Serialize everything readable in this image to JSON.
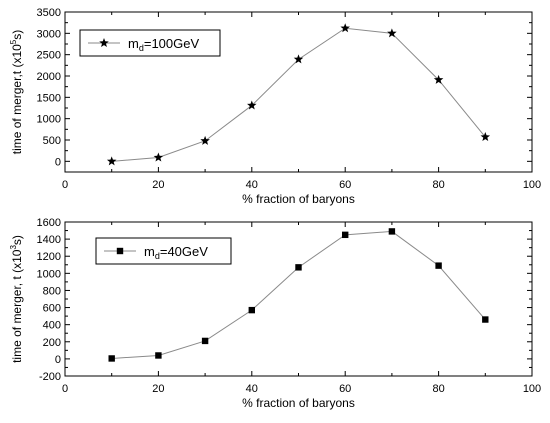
{
  "chart_data": [
    {
      "type": "line",
      "title": "",
      "xlabel": "% fraction of baryons",
      "ylabel": "time of merger,t (x10",
      "ylabel_sup": "5",
      "ylabel_tail": "s)",
      "xlim": [
        0,
        100
      ],
      "ylim": [
        -250,
        3500
      ],
      "xticks": [
        0,
        20,
        40,
        60,
        80,
        100
      ],
      "yticks": [
        0,
        500,
        1000,
        1500,
        2000,
        2500,
        3000,
        3500
      ],
      "grid": false,
      "legend_position": "top-left",
      "series": [
        {
          "marker": "star",
          "legend_main": "m",
          "legend_sub": "d",
          "legend_tail": "=100GeV",
          "x": [
            10,
            20,
            30,
            40,
            50,
            60,
            70,
            80,
            90
          ],
          "y": [
            0,
            90,
            480,
            1310,
            2390,
            3120,
            3000,
            1910,
            570
          ]
        }
      ]
    },
    {
      "type": "line",
      "title": "",
      "xlabel": "% fraction of baryons",
      "ylabel": "time of merger, t (x10",
      "ylabel_sup": "3",
      "ylabel_tail": "s)",
      "xlim": [
        0,
        100
      ],
      "ylim": [
        -200,
        1600
      ],
      "xticks": [
        0,
        20,
        40,
        60,
        80,
        100
      ],
      "yticks": [
        -200,
        0,
        200,
        400,
        600,
        800,
        1000,
        1200,
        1400,
        1600
      ],
      "grid": false,
      "legend_position": "top-left",
      "series": [
        {
          "marker": "square",
          "legend_main": "m",
          "legend_sub": "d",
          "legend_tail": "=40GeV",
          "x": [
            10,
            20,
            30,
            40,
            50,
            60,
            70,
            80,
            90
          ],
          "y": [
            5,
            40,
            210,
            570,
            1070,
            1450,
            1490,
            1090,
            460
          ]
        }
      ]
    }
  ]
}
